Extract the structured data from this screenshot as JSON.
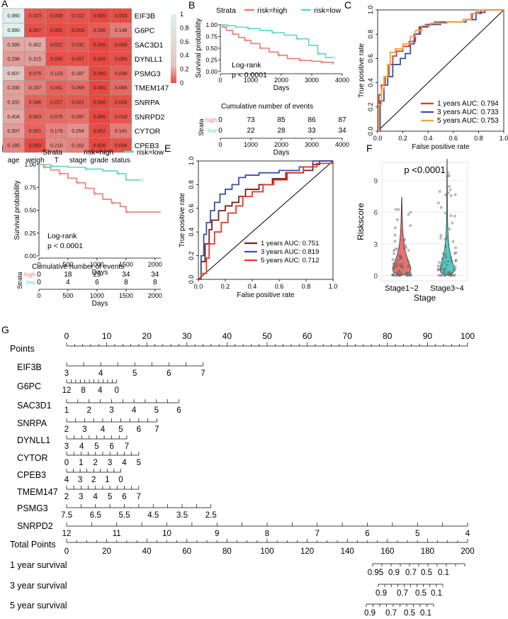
{
  "chart_data": [
    {
      "panel": "A",
      "type": "heatmap",
      "rows": [
        "EIF3B",
        "G6PC",
        "SAC3D1",
        "DYNLL1",
        "PSMG3",
        "TMEM147",
        "SNRPA",
        "SNRPD2",
        "CYTOR",
        "CPEB3"
      ],
      "columns": [
        "age",
        "weigh",
        "T",
        "stage",
        "grade",
        "status"
      ],
      "values": [
        [
          "0.980",
          "0.023",
          "0.009",
          "0.012",
          "0.000",
          "0.003"
        ],
        [
          "0.990",
          "0.007",
          "0.001",
          "0.003",
          "0.030",
          "0.146"
        ],
        [
          "0.395",
          "0.402",
          "0.022",
          "0.032",
          "0.000",
          "0.006"
        ],
        [
          "0.298",
          "0.315",
          "0.005",
          "0.007",
          "0.000",
          "0.004"
        ],
        [
          "0.607",
          "0.075",
          "0.123",
          "0.187",
          "0.000",
          "0.038"
        ],
        [
          "0.330",
          "0.157",
          "0.041",
          "0.069",
          "0.000",
          "0.066"
        ],
        [
          "0.332",
          "0.046",
          "0.017",
          "0.022",
          "0.000",
          "0.006"
        ],
        [
          "0.404",
          "0.063",
          "0.075",
          "0.097",
          "0.000",
          "0.018"
        ],
        [
          "0.307",
          "0.051",
          "0.179",
          "0.254",
          "0.002",
          "0.141"
        ],
        [
          "0.185",
          "0.000",
          "0.210",
          "0.162",
          "0.000",
          "0.008"
        ]
      ],
      "legend_ticks": [
        "1",
        "0.8",
        "0.6",
        "0.4",
        "0.2",
        "0"
      ],
      "colors": {
        "high": "#dff0ee",
        "low": "#e8483f"
      }
    },
    {
      "panel": "B",
      "type": "line",
      "legend_title": "Strata",
      "series": [
        {
          "name": "risk=high",
          "color": "#ee7b76"
        },
        {
          "name": "risk=low",
          "color": "#5cd6c9"
        }
      ],
      "ylabel": "Survival probability",
      "xlabel": "Days",
      "xticks": [
        "0",
        "1000",
        "2000",
        "3000",
        "4000"
      ],
      "yticks": [
        "0.00",
        "0.25",
        "0.50",
        "0.75",
        "1.00"
      ],
      "annotation": [
        "Log-rank",
        "p < 0.0001"
      ],
      "risk_table": {
        "title": "Cumulative number of events",
        "strata_label": "Strata",
        "row_labels": [
          "high",
          "low"
        ],
        "high": [
          "0",
          "73",
          "85",
          "86",
          "87"
        ],
        "low": [
          "0",
          "22",
          "28",
          "33",
          "34"
        ],
        "xticks": [
          "0",
          "1000",
          "2000",
          "3000",
          "4000"
        ],
        "xlabel": "Days"
      }
    },
    {
      "panel": "C",
      "type": "line",
      "ylabel": "True positive rate",
      "xlabel": "False positive rate",
      "ticks": [
        "0.0",
        "0.2",
        "0.4",
        "0.6",
        "0.8",
        "1.0"
      ],
      "legend": [
        {
          "label": "1 years AUC: 0.794",
          "color": "#d93a2b"
        },
        {
          "label": "3 years AUC: 0.733",
          "color": "#3b4fae"
        },
        {
          "label": "5 years AUC: 0.753",
          "color": "#f2a434"
        }
      ]
    },
    {
      "panel": "D",
      "type": "line",
      "legend_title": "Strata",
      "series": [
        {
          "name": "risk=high",
          "color": "#ee7b76"
        },
        {
          "name": "risk=low",
          "color": "#5cd6c9"
        }
      ],
      "ylabel": "Survival probability",
      "xlabel": "Days",
      "xticks": [
        "0",
        "500",
        "1000",
        "1500",
        "2000"
      ],
      "yticks": [
        "0.00",
        "0.25",
        "0.50",
        "0.75",
        "1.00"
      ],
      "annotation": [
        "Log-rank",
        "p < 0.0001"
      ],
      "risk_table": {
        "title": "Cumulative number of events",
        "strata_label": "Strata",
        "row_labels": [
          "high",
          "low"
        ],
        "high": [
          "0",
          "18",
          "29",
          "34",
          "34"
        ],
        "low": [
          "0",
          "4",
          "6",
          "8",
          "8"
        ],
        "xticks": [
          "0",
          "500",
          "1000",
          "1500",
          "2000"
        ],
        "xlabel": "Days"
      }
    },
    {
      "panel": "E",
      "type": "line",
      "ylabel": "True positive rate",
      "xlabel": "False positive rate",
      "ticks": [
        "0.0",
        "0.2",
        "0.4",
        "0.6",
        "0.8",
        "1.0"
      ],
      "legend": [
        {
          "label": "1 years AUC: 0.751",
          "color": "#7a1f1a"
        },
        {
          "label": "3 years AUC: 0.819",
          "color": "#3b4fae"
        },
        {
          "label": "5 years AUC: 0.712",
          "color": "#e0392b"
        }
      ]
    },
    {
      "panel": "F",
      "type": "scatter",
      "title": "p <0.0001",
      "ylabel": "Riskscore",
      "xlabel": "Stage",
      "categories": [
        "Stage1~2",
        "Stage3~4"
      ],
      "yticks": [
        "0",
        "3",
        "6",
        "9"
      ],
      "colors": [
        "#e8645f",
        "#3fc7bc"
      ]
    },
    {
      "panel": "G",
      "type": "table",
      "points_label": "Points",
      "points_ticks": [
        "0",
        "10",
        "20",
        "30",
        "40",
        "50",
        "60",
        "70",
        "80",
        "90",
        "100"
      ],
      "variables": [
        {
          "name": "EIF3B",
          "ticks": [
            "3",
            "4",
            "5",
            "6",
            "7"
          ]
        },
        {
          "name": "G6PC",
          "ticks": [
            "12",
            "8",
            "4",
            "0"
          ]
        },
        {
          "name": "SAC3D1",
          "ticks": [
            "1",
            "2",
            "3",
            "4",
            "5",
            "6"
          ]
        },
        {
          "name": "SNRPA",
          "ticks": [
            "2",
            "3",
            "4",
            "5",
            "6",
            "7"
          ]
        },
        {
          "name": "DYNLL1",
          "ticks": [
            "3",
            "4",
            "5",
            "6",
            "7"
          ]
        },
        {
          "name": "CYTOR",
          "ticks": [
            "0",
            "1",
            "2",
            "3",
            "4",
            "5"
          ]
        },
        {
          "name": "CPEB3",
          "ticks": [
            "4",
            "3",
            "2",
            "1",
            "0"
          ]
        },
        {
          "name": "TMEM147",
          "ticks": [
            "2",
            "3",
            "4",
            "5",
            "6",
            "7"
          ]
        },
        {
          "name": "PSMG3",
          "ticks": [
            "7.5",
            "6.5",
            "5.5",
            "4.5",
            "3.5",
            "2.5"
          ]
        },
        {
          "name": "SNRPD2",
          "ticks": [
            "12",
            "11",
            "10",
            "9",
            "8",
            "7",
            "6",
            "5",
            "4"
          ]
        }
      ],
      "total_label": "Total Points",
      "total_ticks": [
        "0",
        "20",
        "40",
        "60",
        "80",
        "100",
        "120",
        "140",
        "160",
        "180",
        "200"
      ],
      "survival": [
        {
          "name": "1 year survival",
          "ticks": [
            "0.95",
            "0.9",
            "0.7",
            "0.5",
            "0.1"
          ]
        },
        {
          "name": "3 year survival",
          "ticks": [
            "0.9",
            "0.7",
            "0.5",
            "0.1"
          ]
        },
        {
          "name": "5 year survival",
          "ticks": [
            "0.9",
            "0.7",
            "0.5",
            "0.1"
          ]
        }
      ]
    }
  ],
  "panel_labels": [
    "A",
    "B",
    "C",
    "D",
    "E",
    "F",
    "G"
  ]
}
